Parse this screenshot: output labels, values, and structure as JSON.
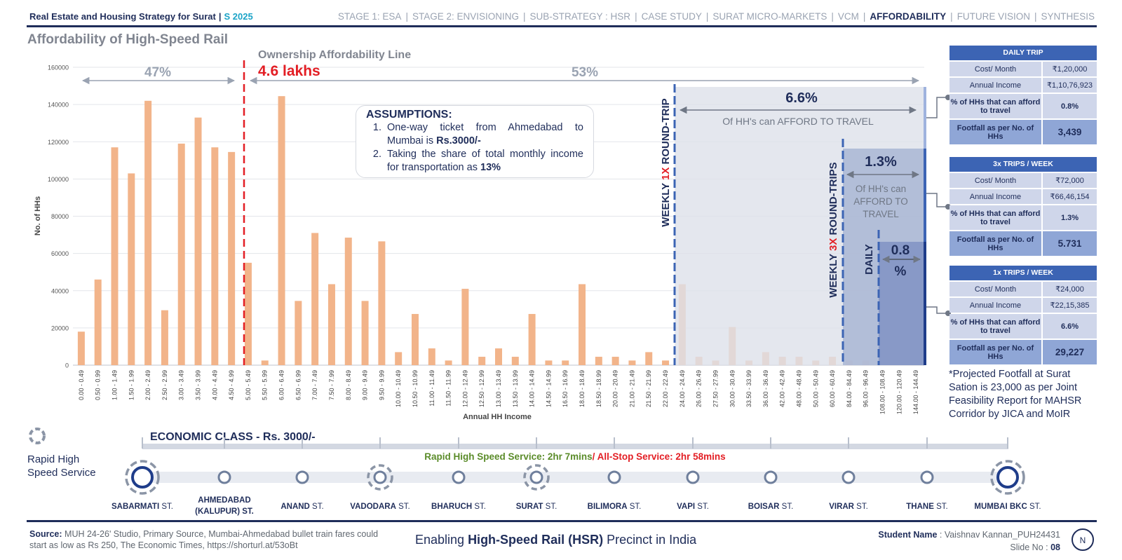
{
  "header": {
    "title": "Real Estate and Housing Strategy for Surat",
    "code": "S 2025",
    "nav": [
      "STAGE 1: ESA",
      "STAGE 2: ENVISIONING",
      "SUB-STRATEGY : HSR",
      "CASE STUDY",
      "SURAT  MICRO-MARKETS",
      "VCM",
      "AFFORDABILITY",
      "FUTURE VISION",
      "SYNTHESIS"
    ],
    "active_nav": "AFFORDABILITY"
  },
  "slide_title": "Affordability of High-Speed Rail",
  "ownership": {
    "label": "Ownership Affordability Line",
    "value": "4.6 lakhs",
    "left_pct": "47%",
    "right_pct": "53%"
  },
  "assumptions": {
    "title": "ASSUMPTIONS:",
    "item1_pre": "One-way ticket from Ahmedabad to Mumbai is ",
    "item1_bold": "Rs.3000/-",
    "item2_pre": "Taking the share of total monthly income for transportation as ",
    "item2_bold": "13%"
  },
  "zones": {
    "weekly1x": {
      "pre": "WEEKLY ",
      "mid": "1X",
      "post": " ROUND-TRIP",
      "pct": "6.6%",
      "caption": "Of HH's can AFFORD TO TRAVEL"
    },
    "weekly3x": {
      "pre": "WEEKLY ",
      "mid": "3X",
      "post": " ROUND-TRIPS",
      "pct": "1.3%",
      "caption1": "Of HH's can",
      "caption2": "AFFORD TO",
      "caption3": "TRAVEL"
    },
    "daily": {
      "label": "DAILY",
      "pct1": "0.8",
      "pct2": "%"
    }
  },
  "chart_data": {
    "type": "bar",
    "xlabel": "Annual HH Income",
    "ylabel": "No. of HHs",
    "ylim": [
      0,
      160000
    ],
    "yticks": [
      0,
      20000,
      40000,
      60000,
      80000,
      100000,
      120000,
      140000,
      160000
    ],
    "color": "#f2b48a",
    "categories": [
      "0.00 - 0.49",
      "0.50 - 0.99",
      "1.00 - 1.49",
      "1.50 - 1.99",
      "2.00 - 2.49",
      "2.50 - 2.99",
      "3.00 - 3.49",
      "3.50 - 3.99",
      "4.00 - 4.49",
      "4.50 - 4.99",
      "5.00 - 5.49",
      "5.50 - 5.99",
      "6.00 - 6.49",
      "6.50 - 6.99",
      "7.00 - 7.49",
      "7.50 - 7.99",
      "8.00 - 8.49",
      "9.00 - 9.49",
      "9.50 - 9.99",
      "10.00 - 10.49",
      "10.50 - 10.99",
      "11.00 - 11.49",
      "11.50 - 11.99",
      "12.00 - 12.49",
      "12.50 - 12.99",
      "13.00 - 13.49",
      "13.50 - 13.99",
      "14.00 - 14.49",
      "14.50 - 14.99",
      "16.50 - 16.99",
      "18.00 - 18.49",
      "18.50 - 18.99",
      "20.00 - 20.49",
      "21.00 - 21.49",
      "21.50 - 21.99",
      "22.00 - 22.49",
      "24.00 - 24.49",
      "26.00 - 26.49",
      "27.50 - 27.99",
      "30.00 - 30.49",
      "33.50 - 33.99",
      "36.00 - 36.49",
      "42.00 - 42.49",
      "48.00 - 48.49",
      "50.00 - 50.49",
      "60.00 - 60.49",
      "84.00 - 84.49",
      "96.00 - 96.49",
      "108.00 - 108.49",
      "120.00 - 120.49",
      "144.00 - 144.49"
    ],
    "values": [
      18000,
      46000,
      117000,
      103000,
      142000,
      29500,
      119000,
      133000,
      117000,
      114500,
      55000,
      2500,
      144500,
      34500,
      71000,
      43500,
      68500,
      34500,
      66500,
      7000,
      27500,
      9000,
      2500,
      41000,
      4500,
      9000,
      4500,
      27500,
      2500,
      2500,
      43500,
      4500,
      4500,
      2500,
      7000,
      2500,
      43500,
      4500,
      2500,
      20500,
      2500,
      7000,
      4500,
      4500,
      2500,
      4500,
      2500,
      2500,
      2500,
      7000,
      4500
    ]
  },
  "tables": [
    {
      "title": "DAILY TRIP",
      "cost_label": "Cost/ Month",
      "cost": "₹1,20,000",
      "income_label": "Annual Income",
      "income": "₹1,10,76,923",
      "pct_label": "% of HHs that can afford to travel",
      "pct": "0.8%",
      "foot_label": "Footfall as per No. of HHs",
      "foot": "3,439"
    },
    {
      "title": "3x TRIPS / WEEK",
      "cost_label": "Cost/ Month",
      "cost": "₹72,000",
      "income_label": "Annual Income",
      "income": "₹66,46,154",
      "pct_label": "% of HHs that can afford to travel",
      "pct": "1.3%",
      "foot_label": "Footfall as per No. of HHs",
      "foot": "5.731"
    },
    {
      "title": "1x TRIPS / WEEK",
      "cost_label": "Cost/ Month",
      "cost": "₹24,000",
      "income_label": "Annual Income",
      "income": "₹22,15,385",
      "pct_label": "% of HHs that can afford to travel",
      "pct": "6.6%",
      "foot_label": "Footfall as per No. of HHs",
      "foot": "29,227"
    }
  ],
  "note": "*Projected Footfall at Surat Sation is 23,000 as per Joint Feasibility Report for MAHSR Corridor by JICA and MoIR",
  "route": {
    "legend": "Rapid High Speed Service",
    "economic": "ECONOMIC CLASS - Rs. 3000/-",
    "rapid": "Rapid High Speed Service: 2hr 7mins",
    "allstop": "/ All-Stop Service: 2hr 58mins",
    "stations": [
      {
        "name": "SABARMATI",
        "suffix": " ST.",
        "sub": ""
      },
      {
        "name": "AHMEDABAD",
        "suffix": "",
        "sub": "(KALUPUR) ST."
      },
      {
        "name": "ANAND",
        "suffix": " ST.",
        "sub": ""
      },
      {
        "name": "VADODARA",
        "suffix": " ST.",
        "sub": ""
      },
      {
        "name": "BHARUCH",
        "suffix": " ST.",
        "sub": ""
      },
      {
        "name": "SURAT",
        "suffix": " ST.",
        "sub": ""
      },
      {
        "name": "BILIMORA",
        "suffix": " ST.",
        "sub": ""
      },
      {
        "name": "VAPI",
        "suffix": " ST.",
        "sub": ""
      },
      {
        "name": "BOISAR",
        "suffix": " ST.",
        "sub": ""
      },
      {
        "name": "VIRAR",
        "suffix": " ST.",
        "sub": ""
      },
      {
        "name": "THANE",
        "suffix": " ST.",
        "sub": ""
      },
      {
        "name": "MUMBAI BKC",
        "suffix": " ST.",
        "sub": ""
      }
    ]
  },
  "footer": {
    "source_label": "Source:",
    "source": "MUH 24-26' Studio, Primary Source, Mumbai-Ahmedabad bullet train fares could start as low as Rs 250, The Economic Times, https://shorturl.at/53oBt",
    "title_pre": "Enabling ",
    "title_bold": "High-Speed Rail (HSR)",
    "title_post": " Precinct in India",
    "student_label": "Student Name",
    "student": " : Vaishnav Kannan_PUH24431",
    "slide_label": "Slide No :",
    "slide": " 08",
    "compass": "N"
  },
  "colors": {
    "navy": "#1f2d5a",
    "accent_red": "#e31e24",
    "bar": "#f2b48a",
    "blue": "#3c64b4",
    "green": "#5b8c2a"
  }
}
